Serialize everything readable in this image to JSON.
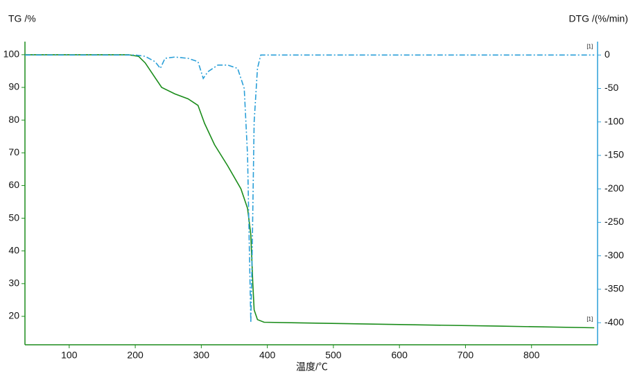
{
  "chart_data": {
    "type": "line",
    "ylabel": "TG /%",
    "y2label": "DTG /(%/min)",
    "xlabel": "温度/℃",
    "xlim": [
      33,
      900
    ],
    "xticks": [
      100,
      200,
      300,
      400,
      500,
      600,
      700,
      800
    ],
    "ylim": [
      11.3,
      104
    ],
    "yticks": [
      20,
      30,
      40,
      50,
      60,
      70,
      80,
      90,
      100
    ],
    "y2lim": [
      -433,
      20
    ],
    "y2ticks": [
      0,
      -50,
      -100,
      -150,
      -200,
      -250,
      -300,
      -350,
      -400
    ],
    "series": [
      {
        "name": "TG",
        "color": "#1a8c1a",
        "dash": false,
        "end_label": "[1]",
        "x": [
          33,
          100,
          190,
          205,
          215,
          230,
          240,
          260,
          280,
          295,
          305,
          320,
          340,
          360,
          370,
          375,
          378,
          380,
          385,
          395,
          450,
          600,
          750,
          895
        ],
        "values": [
          100,
          100,
          100,
          99.5,
          97.5,
          93,
          90,
          88,
          86.5,
          84.5,
          79,
          72.5,
          66,
          59,
          53,
          45,
          30,
          22,
          19,
          18.2,
          18,
          17.5,
          17,
          16.5
        ]
      },
      {
        "name": "DTG",
        "color": "#2a9fd8",
        "dash": true,
        "axis": "y2",
        "end_label": "[1]",
        "x": [
          33,
          200,
          215,
          230,
          238,
          245,
          260,
          280,
          295,
          303,
          310,
          325,
          340,
          355,
          365,
          370,
          373,
          375,
          377,
          380,
          385,
          390,
          895
        ],
        "values": [
          0,
          0,
          -2,
          -10,
          -20,
          -5,
          -3,
          -5,
          -10,
          -35,
          -25,
          -15,
          -15,
          -20,
          -50,
          -150,
          -300,
          -400,
          -300,
          -100,
          -20,
          0,
          0
        ]
      }
    ]
  }
}
